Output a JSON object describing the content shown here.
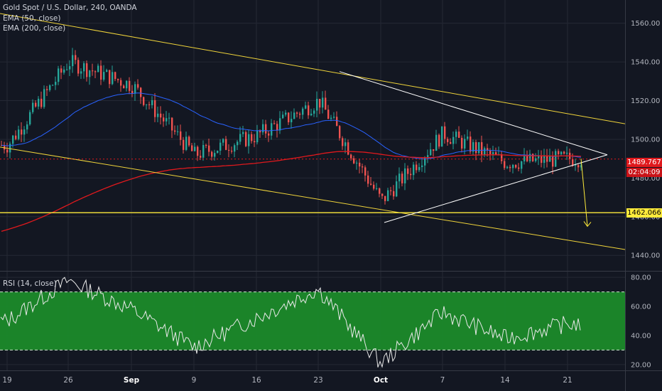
{
  "header": {
    "title": "Gold Spot / U.S. Dollar, 240, OANDA",
    "ema50_label": "EMA (50, close)",
    "ema200_label": "EMA (200, close)"
  },
  "rsi_label": "RSI (14, close)",
  "price_tags": {
    "current": "1489.767",
    "countdown": "02:04:09",
    "support": "1462.066"
  },
  "colors": {
    "background": "#131722",
    "up_candle": "#26a69a",
    "down_candle": "#ef5350",
    "ema50": "#2962ff",
    "ema200": "#e0191d",
    "channel": "#f0d43a",
    "support": "#ffeb3b",
    "triangle": "#ffffff",
    "rsi_band": "#1b8a2a",
    "rsi_line": "#e8e8e8"
  },
  "chart_data": [
    {
      "type": "candlestick",
      "title": "Gold Spot / U.S. Dollar, 240, OANDA",
      "x_ticks": [
        "19",
        "26",
        "Sep",
        "9",
        "16",
        "23",
        "Oct",
        "7",
        "14",
        "21"
      ],
      "y_ticks": [
        1440,
        1460,
        1480,
        1500,
        1520,
        1540,
        1560
      ],
      "ylim": [
        1432,
        1572
      ],
      "keypoints": [
        {
          "label": "19",
          "close": 1497
        },
        {
          "label": "26",
          "close": 1540
        },
        {
          "label": "Sep",
          "close": 1528
        },
        {
          "label": "9",
          "close": 1492
        },
        {
          "label": "16",
          "close": 1502
        },
        {
          "label": "23",
          "close": 1520
        },
        {
          "label": "Oct",
          "close": 1468
        },
        {
          "label": "7",
          "close": 1503
        },
        {
          "label": "14",
          "close": 1488
        },
        {
          "label": "21",
          "close": 1490
        }
      ],
      "last_price": 1489.767,
      "support_level": 1462.066,
      "grid": true,
      "legend": [
        "EMA (50, close)",
        "EMA (200, close)"
      ]
    },
    {
      "type": "line",
      "title": "RSI (14, close)",
      "y_ticks": [
        20,
        40,
        60,
        80
      ],
      "ylim": [
        16,
        84
      ],
      "band": [
        30,
        70
      ],
      "keypoints": [
        {
          "label": "19",
          "value": 50
        },
        {
          "label": "26",
          "value": 78
        },
        {
          "label": "Sep",
          "value": 58
        },
        {
          "label": "9",
          "value": 32
        },
        {
          "label": "16",
          "value": 52
        },
        {
          "label": "23",
          "value": 72
        },
        {
          "label": "Oct",
          "value": 21
        },
        {
          "label": "7",
          "value": 56
        },
        {
          "label": "14",
          "value": 38
        },
        {
          "label": "21",
          "value": 48
        }
      ]
    }
  ]
}
